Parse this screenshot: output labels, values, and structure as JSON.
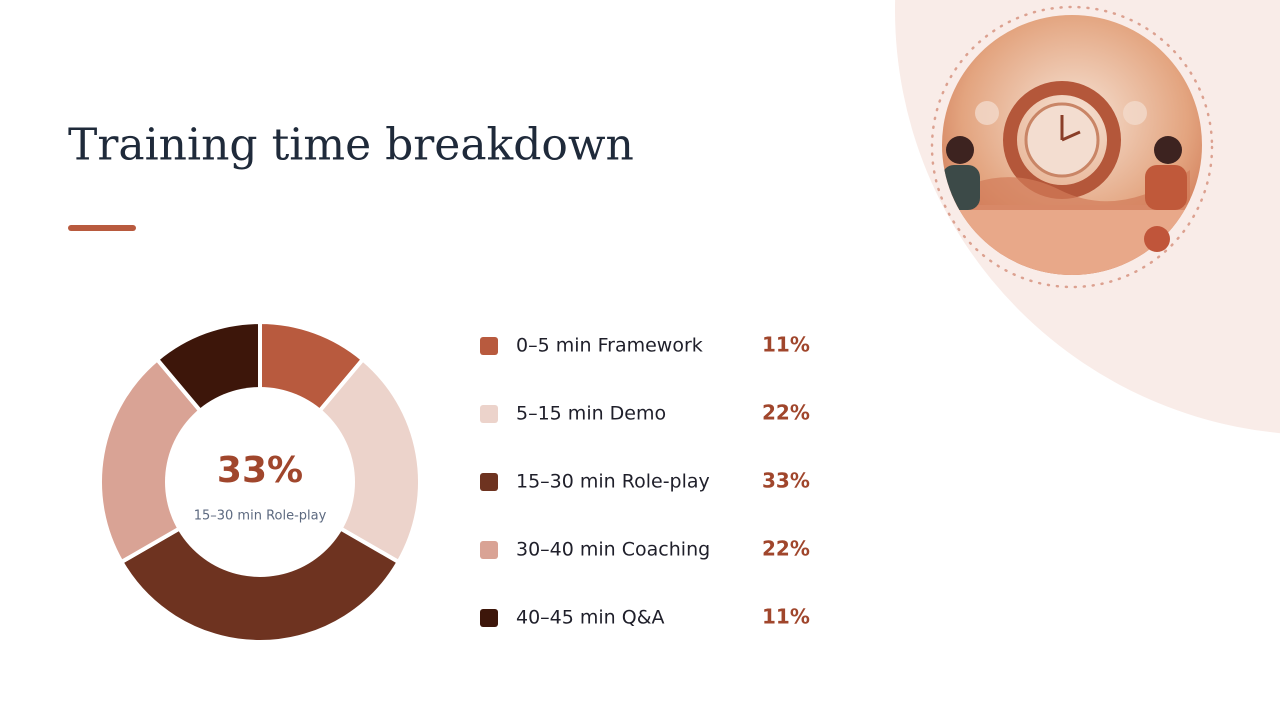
{
  "chart_data": {
    "type": "pie",
    "title": "Training time breakdown",
    "categories": [
      "0–5 min Framework",
      "5–15 min Demo",
      "15–30 min Role-play",
      "30–40 min Coaching",
      "40–45 min Q&A"
    ],
    "values": [
      11,
      22,
      33,
      22,
      11
    ],
    "value_labels": [
      "11%",
      "22%",
      "33%",
      "22%",
      "11%"
    ],
    "colors": [
      "#b85a3e",
      "#ecd3cb",
      "#6e3320",
      "#d9a395",
      "#3d160a"
    ],
    "highlight": 2
  }
}
